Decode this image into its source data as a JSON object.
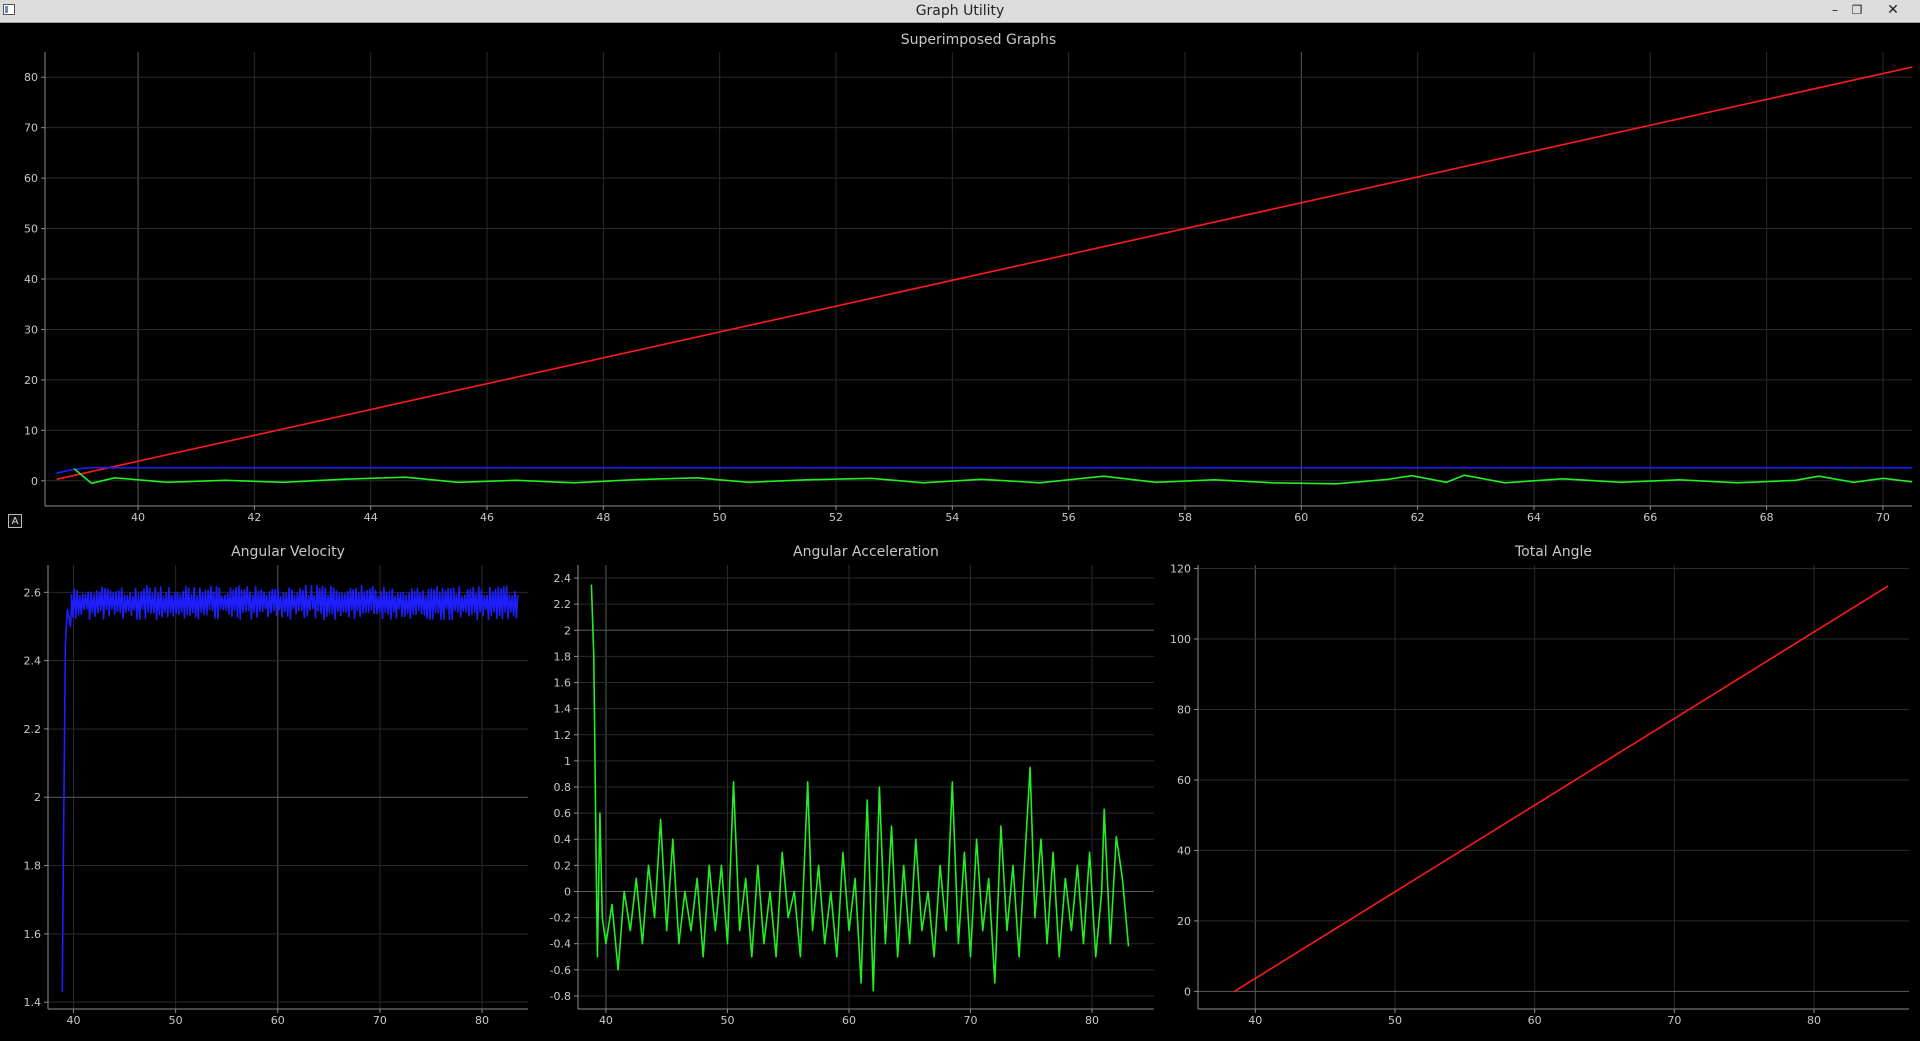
{
  "window": {
    "title": "Graph Utility",
    "controls": {
      "minimize": "–",
      "maximize": "❐",
      "close": "✕"
    },
    "icon": "app-window-icon"
  },
  "auto_range_button": {
    "label": "A",
    "icon": "auto-range-icon"
  },
  "colors": {
    "background": "#000000",
    "red": "#ff1a1a",
    "blue": "#1e1eff",
    "green": "#22ee22"
  },
  "chart_data": [
    {
      "type": "line",
      "title": "Superimposed Graphs",
      "xlabel": "",
      "ylabel": "",
      "xlim": [
        38.4,
        70.5
      ],
      "ylim": [
        -5,
        85
      ],
      "xticks": [
        40,
        42,
        44,
        46,
        48,
        50,
        52,
        54,
        56,
        58,
        60,
        62,
        64,
        66,
        68,
        70
      ],
      "yticks": [
        0,
        10,
        20,
        30,
        40,
        50,
        60,
        70,
        80
      ],
      "xmajor": [
        40,
        60
      ],
      "grid": true,
      "legend": "none",
      "series": [
        {
          "color": "#ff1a1a",
          "points": [
            [
              38.6,
              0.3
            ],
            [
              70.5,
              82
            ]
          ]
        },
        {
          "color": "#1e1eff",
          "points": [
            [
              38.6,
              1.5
            ],
            [
              38.9,
              2.3
            ],
            [
              39.2,
              2.6
            ],
            [
              70.5,
              2.6
            ]
          ]
        },
        {
          "color": "#22ee22",
          "points": [
            [
              38.9,
              2.4
            ],
            [
              39.2,
              -0.5
            ],
            [
              39.6,
              0.6
            ],
            [
              40.5,
              -0.3
            ],
            [
              41.5,
              0.1
            ],
            [
              42.5,
              -0.3
            ],
            [
              43.5,
              0.3
            ],
            [
              44.6,
              0.7
            ],
            [
              45.5,
              -0.3
            ],
            [
              46.5,
              0.1
            ],
            [
              47.5,
              -0.4
            ],
            [
              48.5,
              0.2
            ],
            [
              49.6,
              0.6
            ],
            [
              50.5,
              -0.3
            ],
            [
              51.5,
              0.2
            ],
            [
              52.6,
              0.5
            ],
            [
              53.5,
              -0.4
            ],
            [
              54.5,
              0.3
            ],
            [
              55.5,
              -0.4
            ],
            [
              56.6,
              0.9
            ],
            [
              57.5,
              -0.3
            ],
            [
              58.5,
              0.2
            ],
            [
              59.5,
              -0.4
            ],
            [
              60.6,
              -0.6
            ],
            [
              61.5,
              0.3
            ],
            [
              61.9,
              1.0
            ],
            [
              62.5,
              -0.3
            ],
            [
              62.8,
              1.1
            ],
            [
              63.5,
              -0.4
            ],
            [
              64.5,
              0.4
            ],
            [
              65.5,
              -0.3
            ],
            [
              66.5,
              0.2
            ],
            [
              67.5,
              -0.4
            ],
            [
              68.5,
              0.1
            ],
            [
              68.9,
              0.9
            ],
            [
              69.5,
              -0.3
            ],
            [
              70.0,
              0.5
            ],
            [
              70.5,
              -0.2
            ]
          ]
        }
      ]
    },
    {
      "type": "line",
      "title": "Angular Velocity",
      "xlabel": "",
      "ylabel": "",
      "xlim": [
        37.5,
        84.5
      ],
      "ylim": [
        1.38,
        2.68
      ],
      "xticks": [
        40,
        50,
        60,
        70,
        80
      ],
      "yticks": [
        1.4,
        1.6,
        1.8,
        2,
        2.2,
        2.4,
        2.6
      ],
      "xmajor": [
        60
      ],
      "ymajor": [
        2
      ],
      "grid": true,
      "legend": "none",
      "series": [
        {
          "color": "#1e1eff",
          "noise": {
            "x_from": 39.8,
            "x_to": 83.5,
            "center": 2.57,
            "amplitude": 0.05,
            "samples": 320
          },
          "points": [
            [
              38.9,
              1.43
            ],
            [
              39.0,
              1.8
            ],
            [
              39.2,
              2.45
            ],
            [
              39.4,
              2.55
            ],
            [
              39.7,
              2.5
            ],
            [
              39.8,
              2.56
            ]
          ]
        }
      ]
    },
    {
      "type": "line",
      "title": "Angular Acceleration",
      "xlabel": "",
      "ylabel": "",
      "xlim": [
        37.7,
        85.1
      ],
      "ylim": [
        -0.9,
        2.5
      ],
      "xticks": [
        40,
        50,
        60,
        70,
        80
      ],
      "yticks": [
        -0.8,
        -0.6,
        -0.4,
        -0.2,
        0,
        0.2,
        0.4,
        0.6,
        0.8,
        1,
        1.2,
        1.4,
        1.6,
        1.8,
        2,
        2.2,
        2.4
      ],
      "xmajor": [
        40
      ],
      "ymajor": [
        0,
        2
      ],
      "grid": true,
      "legend": "none",
      "series": [
        {
          "color": "#22ee22",
          "points": [
            [
              38.8,
              2.35
            ],
            [
              39.0,
              1.8
            ],
            [
              39.2,
              0.2
            ],
            [
              39.3,
              -0.5
            ],
            [
              39.5,
              0.6
            ],
            [
              39.7,
              -0.2
            ],
            [
              40.0,
              -0.4
            ],
            [
              40.5,
              -0.1
            ],
            [
              41.0,
              -0.6
            ],
            [
              41.5,
              0.0
            ],
            [
              42.0,
              -0.3
            ],
            [
              42.5,
              0.1
            ],
            [
              43.0,
              -0.4
            ],
            [
              43.5,
              0.2
            ],
            [
              44.0,
              -0.2
            ],
            [
              44.5,
              0.55
            ],
            [
              45.0,
              -0.3
            ],
            [
              45.5,
              0.4
            ],
            [
              46.0,
              -0.4
            ],
            [
              46.5,
              0.0
            ],
            [
              47.0,
              -0.3
            ],
            [
              47.5,
              0.1
            ],
            [
              48.0,
              -0.5
            ],
            [
              48.5,
              0.2
            ],
            [
              49.0,
              -0.3
            ],
            [
              49.5,
              0.2
            ],
            [
              50.0,
              -0.4
            ],
            [
              50.5,
              0.84
            ],
            [
              51.0,
              -0.3
            ],
            [
              51.5,
              0.1
            ],
            [
              52.0,
              -0.5
            ],
            [
              52.5,
              0.2
            ],
            [
              53.0,
              -0.4
            ],
            [
              53.5,
              0.0
            ],
            [
              54.0,
              -0.5
            ],
            [
              54.5,
              0.3
            ],
            [
              55.0,
              -0.2
            ],
            [
              55.5,
              0.0
            ],
            [
              56.0,
              -0.5
            ],
            [
              56.6,
              0.84
            ],
            [
              57.0,
              -0.3
            ],
            [
              57.5,
              0.2
            ],
            [
              58.0,
              -0.4
            ],
            [
              58.5,
              0.0
            ],
            [
              59.0,
              -0.5
            ],
            [
              59.5,
              0.3
            ],
            [
              60.0,
              -0.3
            ],
            [
              60.5,
              0.1
            ],
            [
              61.0,
              -0.7
            ],
            [
              61.5,
              0.7
            ],
            [
              62.0,
              -0.76
            ],
            [
              62.5,
              0.8
            ],
            [
              63.0,
              -0.4
            ],
            [
              63.5,
              0.5
            ],
            [
              64.0,
              -0.5
            ],
            [
              64.5,
              0.2
            ],
            [
              65.0,
              -0.4
            ],
            [
              65.5,
              0.4
            ],
            [
              66.0,
              -0.3
            ],
            [
              66.5,
              0.0
            ],
            [
              67.0,
              -0.5
            ],
            [
              67.5,
              0.2
            ],
            [
              68.0,
              -0.3
            ],
            [
              68.5,
              0.84
            ],
            [
              69.0,
              -0.4
            ],
            [
              69.5,
              0.3
            ],
            [
              70.0,
              -0.5
            ],
            [
              70.5,
              0.4
            ],
            [
              71.0,
              -0.3
            ],
            [
              71.5,
              0.1
            ],
            [
              72.0,
              -0.7
            ],
            [
              72.5,
              0.5
            ],
            [
              73.0,
              -0.3
            ],
            [
              73.5,
              0.2
            ],
            [
              74.0,
              -0.5
            ],
            [
              74.5,
              0.3
            ],
            [
              74.9,
              0.95
            ],
            [
              75.3,
              -0.2
            ],
            [
              75.8,
              0.4
            ],
            [
              76.3,
              -0.4
            ],
            [
              76.8,
              0.3
            ],
            [
              77.3,
              -0.5
            ],
            [
              77.8,
              0.1
            ],
            [
              78.3,
              -0.3
            ],
            [
              78.8,
              0.2
            ],
            [
              79.3,
              -0.4
            ],
            [
              79.8,
              0.3
            ],
            [
              80.3,
              -0.5
            ],
            [
              80.8,
              0.0
            ],
            [
              81.0,
              0.63
            ],
            [
              81.5,
              -0.4
            ],
            [
              82.0,
              0.42
            ],
            [
              82.5,
              0.1
            ],
            [
              83.0,
              -0.42
            ]
          ]
        }
      ]
    },
    {
      "type": "line",
      "title": "Total Angle",
      "xlabel": "",
      "ylabel": "",
      "xlim": [
        35.9,
        86.8
      ],
      "ylim": [
        -5,
        121
      ],
      "xticks": [
        40,
        50,
        60,
        70,
        80
      ],
      "yticks": [
        0,
        20,
        40,
        60,
        80,
        100,
        120
      ],
      "xmajor": [
        40
      ],
      "ymajor": [
        0
      ],
      "grid": true,
      "legend": "none",
      "series": [
        {
          "color": "#ff1a1a",
          "points": [
            [
              38.5,
              0
            ],
            [
              85.3,
              115
            ]
          ]
        }
      ]
    }
  ]
}
